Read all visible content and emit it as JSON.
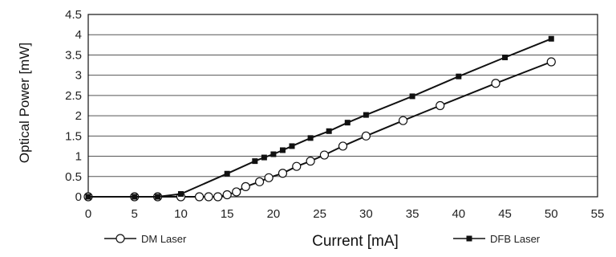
{
  "chart_data": {
    "type": "line",
    "xlabel": "Current [mA]",
    "ylabel": "Optical Power [mW]",
    "xlim": [
      0,
      55
    ],
    "ylim": [
      0,
      4.5
    ],
    "xticks": [
      0,
      5,
      10,
      15,
      20,
      25,
      30,
      35,
      40,
      45,
      50,
      55
    ],
    "yticks": [
      0,
      0.5,
      1,
      1.5,
      2,
      2.5,
      3,
      3.5,
      4,
      4.5
    ],
    "ytick_labels": [
      "0",
      "0.5",
      "1",
      "1.5",
      "2",
      "2.5",
      "3",
      "3.5",
      "4",
      "4.5"
    ],
    "grid": "horizontal",
    "legend_position": "bottom",
    "series": [
      {
        "name": "DM Laser",
        "marker": "open-circle",
        "x": [
          0,
          5,
          7.5,
          10,
          12,
          13,
          14,
          15,
          16,
          17,
          18.5,
          19.5,
          21,
          22.5,
          24,
          25.5,
          27.5,
          30,
          34,
          38,
          44,
          50
        ],
        "y": [
          0,
          0,
          0,
          0,
          0,
          0,
          0,
          0.05,
          0.12,
          0.25,
          0.37,
          0.47,
          0.58,
          0.75,
          0.88,
          1.03,
          1.25,
          1.5,
          1.88,
          2.25,
          2.8,
          3.33
        ]
      },
      {
        "name": "DFB Laser",
        "marker": "filled-square",
        "x": [
          0,
          5,
          7.5,
          10,
          15,
          18,
          19,
          20,
          21,
          22,
          24,
          26,
          28,
          30,
          35,
          40,
          45,
          50
        ],
        "y": [
          0,
          0,
          0,
          0.07,
          0.57,
          0.88,
          0.97,
          1.05,
          1.15,
          1.25,
          1.45,
          1.62,
          1.83,
          2.02,
          2.48,
          2.97,
          3.44,
          3.9
        ]
      }
    ]
  },
  "colors": {
    "line": "#111111",
    "grid": "#555555",
    "marker_fill_open": "#ffffff",
    "marker_fill_filled": "#111111"
  }
}
